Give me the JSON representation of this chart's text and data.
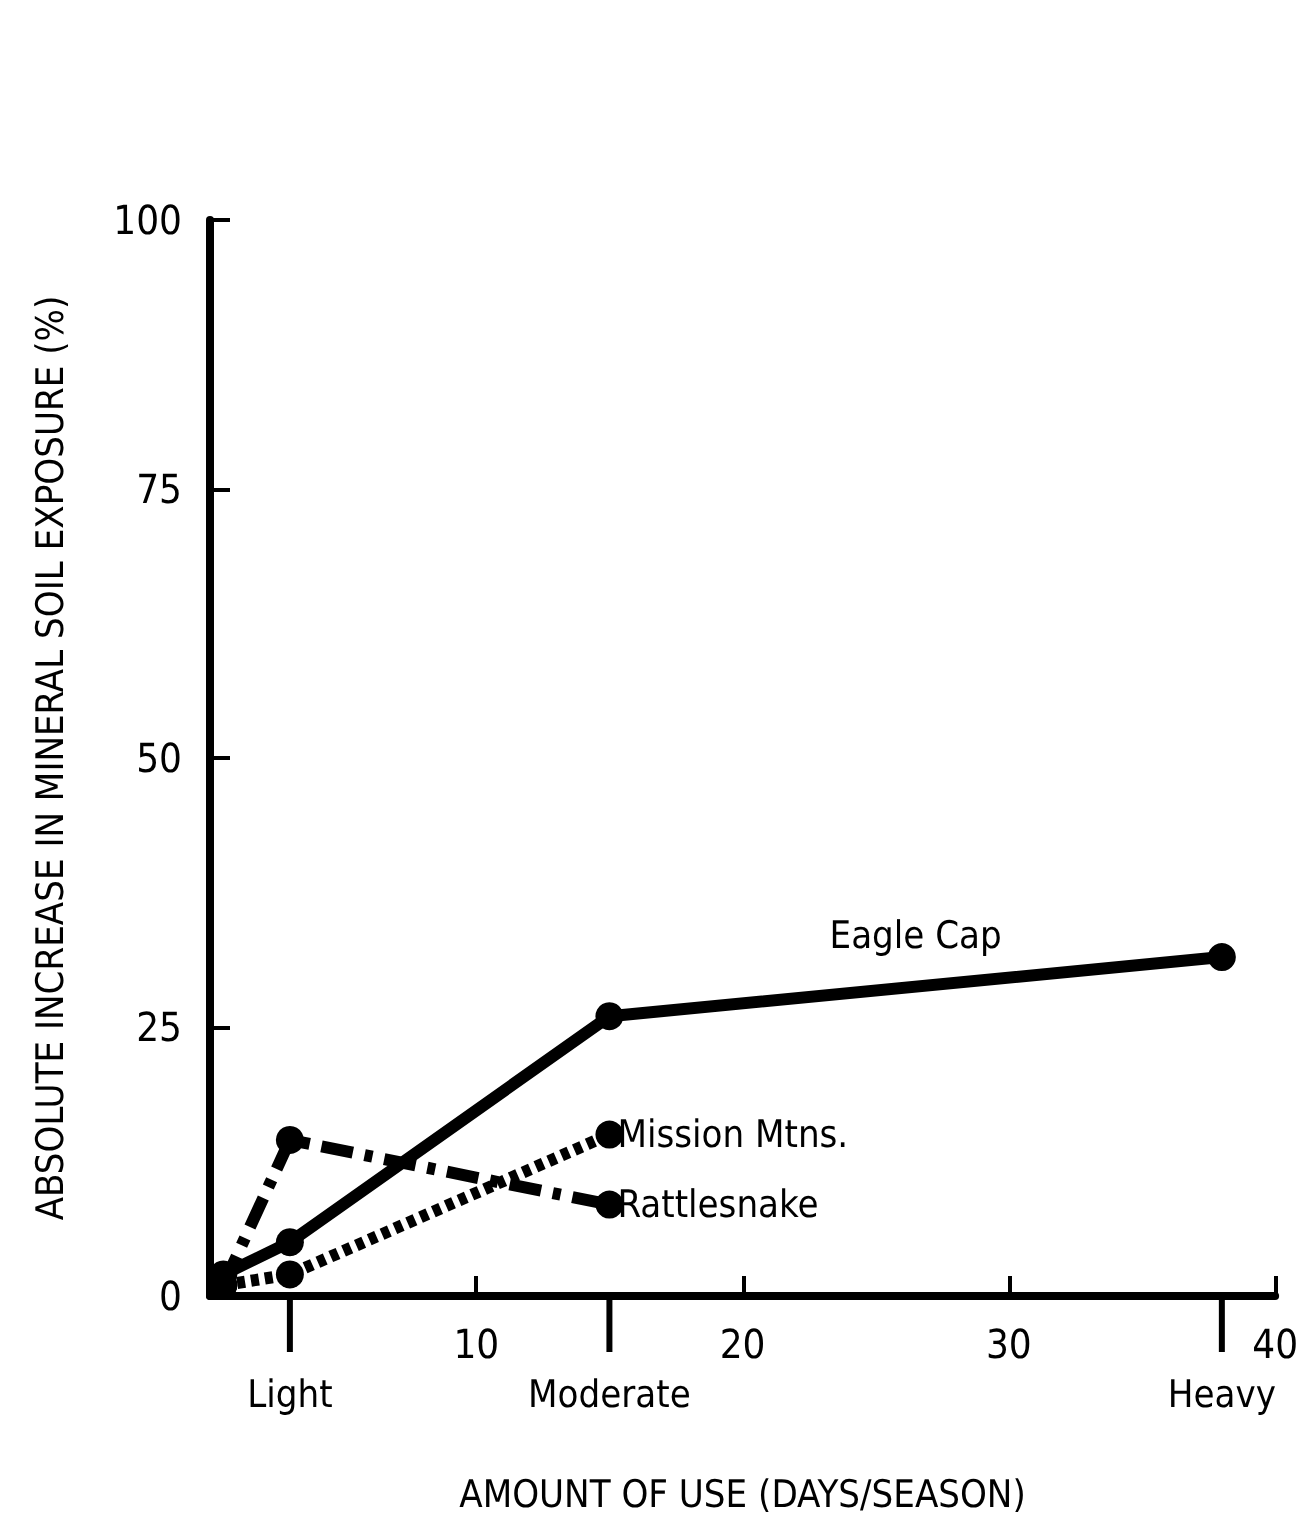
{
  "chart_data": {
    "type": "line",
    "xlabel": "AMOUNT OF USE (DAYS/SEASON)",
    "ylabel": "ABSOLUTE INCREASE IN MINERAL SOIL EXPOSURE (%)",
    "xlim": [
      0,
      40
    ],
    "xticks": [
      {
        "value": 0,
        "label": null
      },
      10,
      20,
      30,
      40
    ],
    "annotations": [
      {
        "text": "Light",
        "x": 3
      },
      {
        "text": "Moderate",
        "x": 15
      },
      {
        "text": "Heavy",
        "x": 38
      }
    ],
    "ylim": [
      0,
      100
    ],
    "yticks": [
      0,
      25,
      50,
      75,
      100
    ],
    "grid": false,
    "legend": false,
    "marker": "circle",
    "series": [
      {
        "name": "Eagle Cap",
        "color": "#000000",
        "line_style": "solid",
        "x": [
          0.5,
          3,
          15,
          38
        ],
        "values": [
          2,
          5,
          26,
          31.5
        ]
      },
      {
        "name": "Mission Mtns.",
        "color": "#000000",
        "line_style": "dotted",
        "x": [
          0.5,
          3,
          15
        ],
        "values": [
          1,
          2,
          15
        ]
      },
      {
        "name": "Rattlesnake",
        "color": "#000000",
        "line_style": "dashed",
        "x": [
          0.5,
          3,
          15
        ],
        "values": [
          1,
          14.5,
          8.5
        ]
      }
    ]
  }
}
